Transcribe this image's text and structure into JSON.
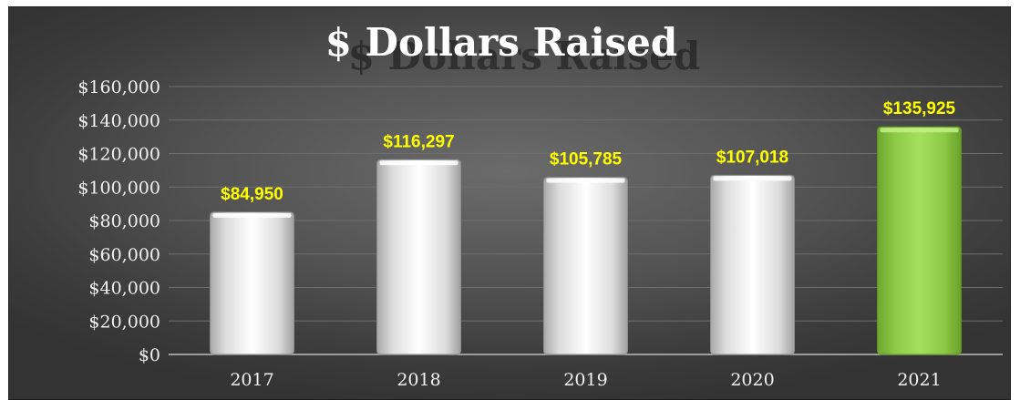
{
  "colors": {
    "bar": "#e6e6e6",
    "highlight_bar": "#92d050",
    "data_label": "#ffff00",
    "text": "#f2f2f2",
    "gridline": "#6e6e6e"
  },
  "chart_data": {
    "type": "bar",
    "title": "$ Dollars Raised",
    "xlabel": "",
    "ylabel": "",
    "categories": [
      "2017",
      "2018",
      "2019",
      "2020",
      "2021"
    ],
    "values": [
      84950,
      116297,
      105785,
      107018,
      135925
    ],
    "data_labels": [
      "$84,950",
      "$116,297",
      "$105,785",
      "$107,018",
      "$135,925"
    ],
    "y_ticks": [
      0,
      20000,
      40000,
      60000,
      80000,
      100000,
      120000,
      140000,
      160000
    ],
    "y_tick_labels": [
      "$0",
      "$20,000",
      "$40,000",
      "$60,000",
      "$80,000",
      "$100,000",
      "$120,000",
      "$140,000",
      "$160,000"
    ],
    "ylim": [
      0,
      160000
    ],
    "highlight_category": "2021",
    "grid": true,
    "legend": "none"
  }
}
